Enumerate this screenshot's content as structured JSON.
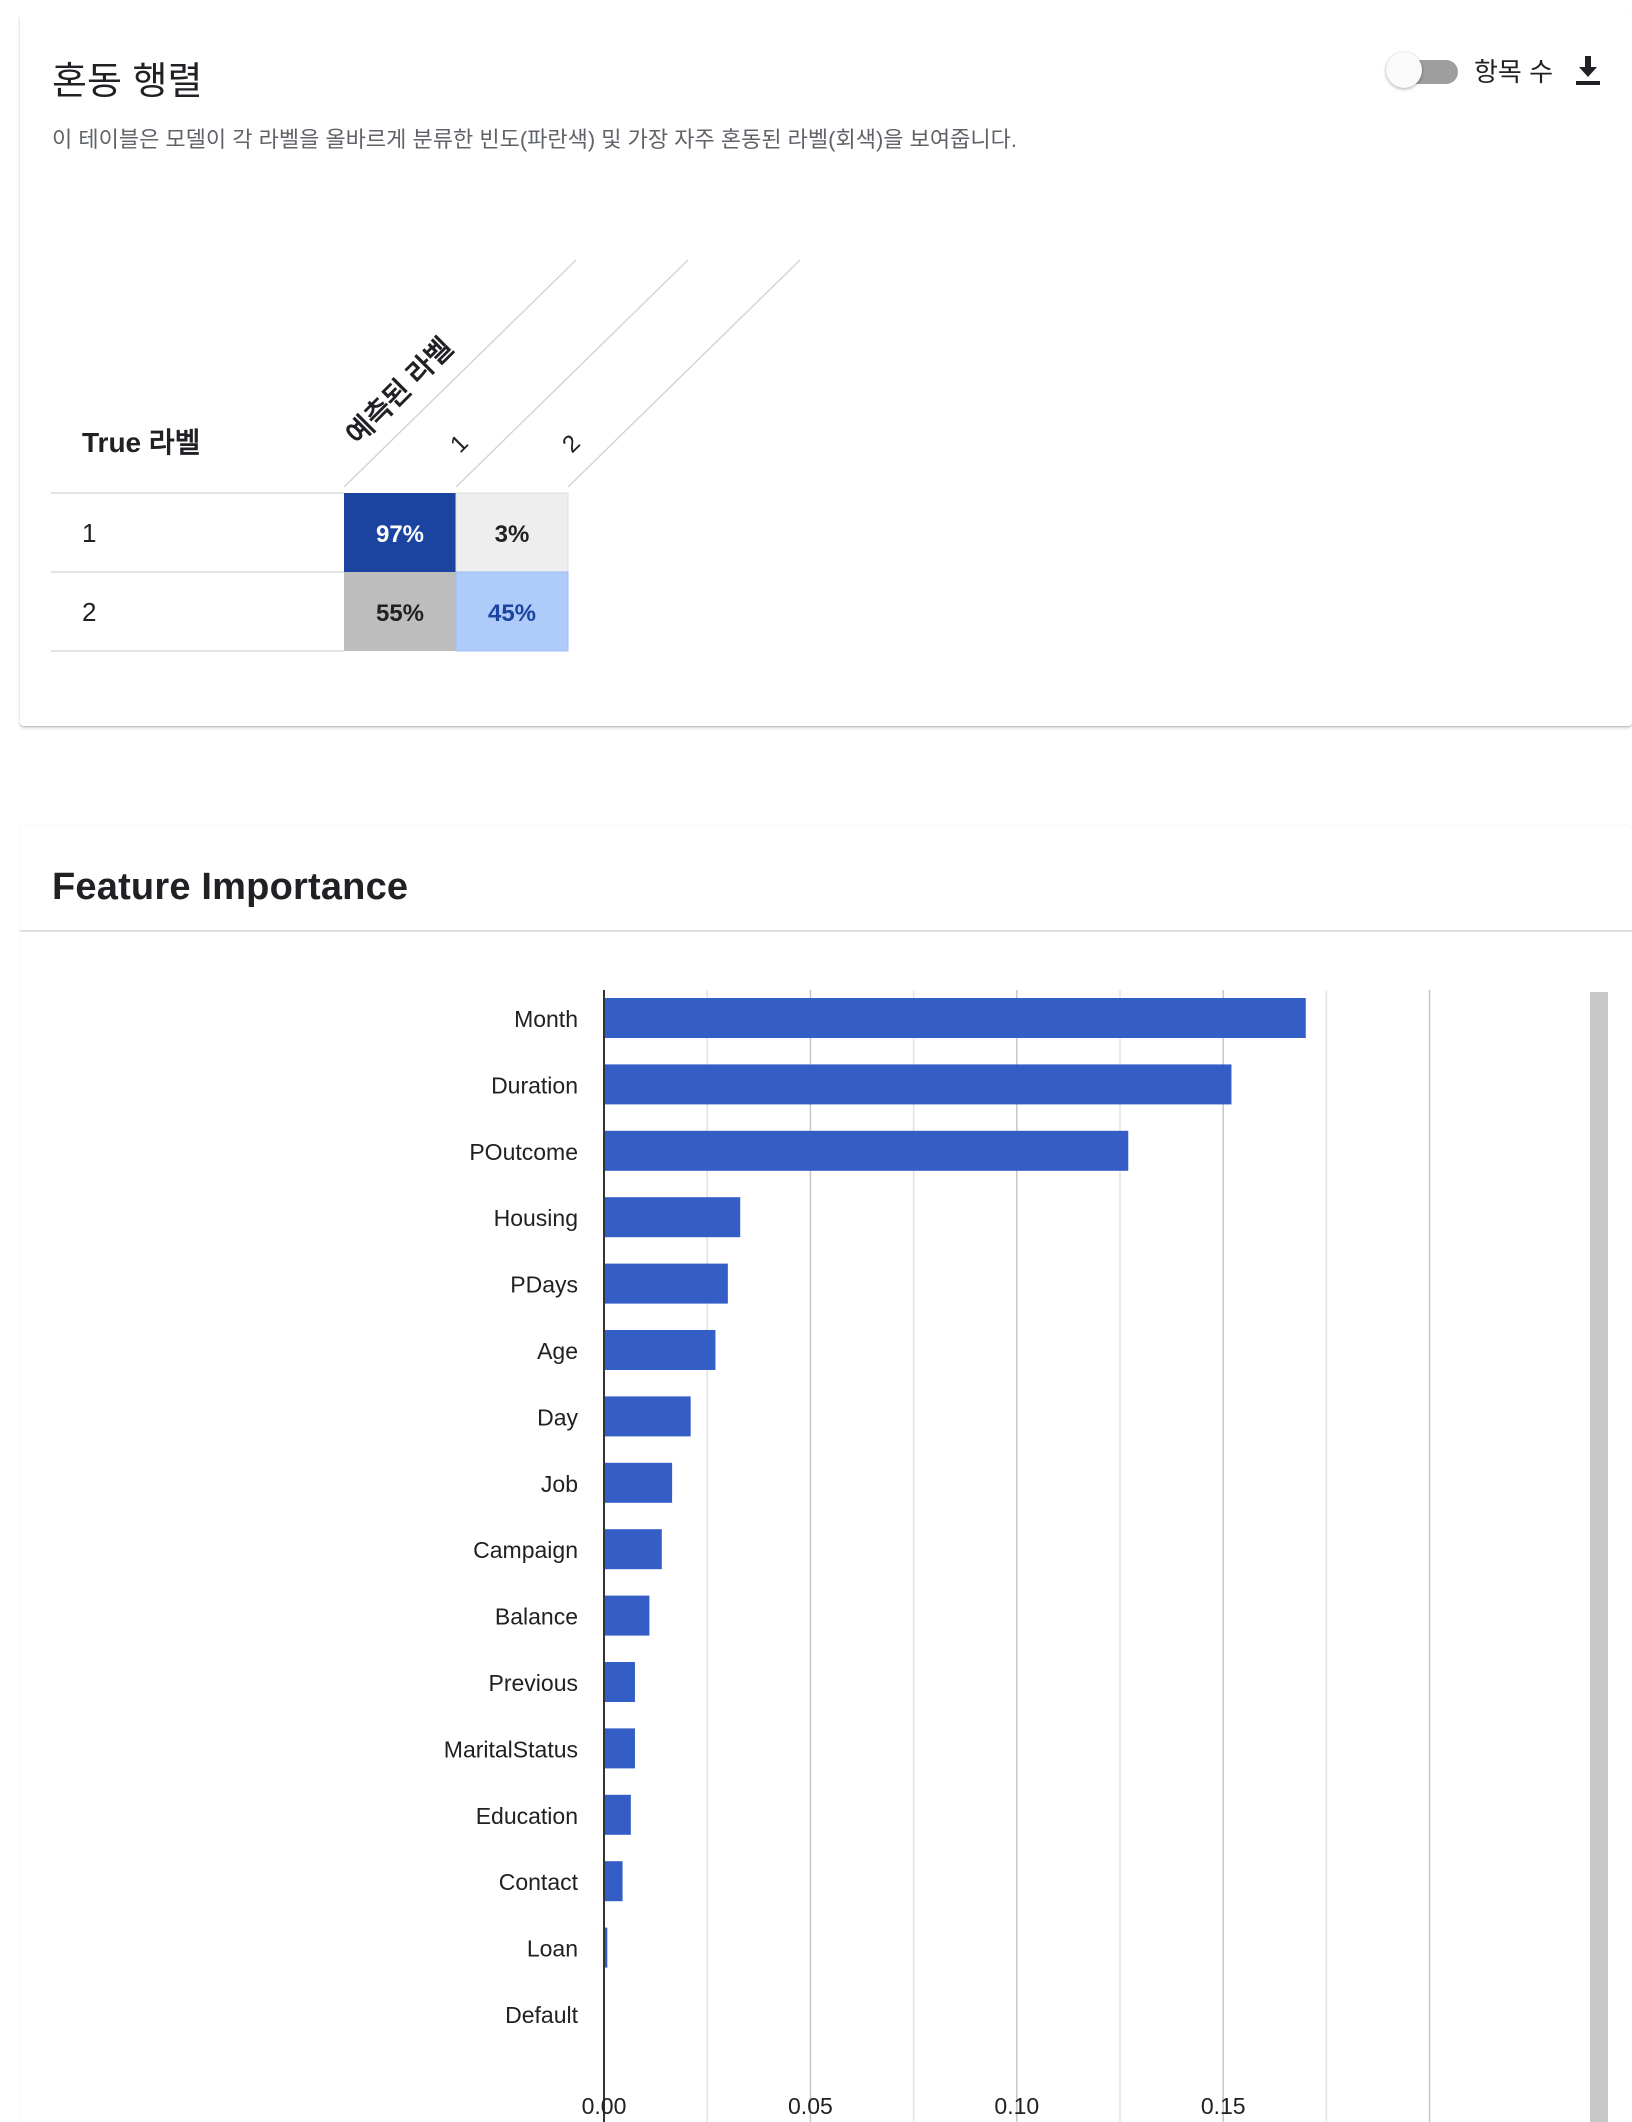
{
  "confusion_matrix": {
    "title": "혼동 행렬",
    "description": "이 테이블은 모델이 각 라벨을 올바르게 분류한 빈도(파란색) 및 가장 자주 혼동된 라벨(회색)을 보여줍니다.",
    "toggle_label": "항목 수",
    "toggle_on": false,
    "true_label_header": "True 라벨",
    "predicted_label_header": "예측된 라벨",
    "predicted_labels": [
      "1",
      "2"
    ],
    "rows": [
      {
        "label": "1",
        "cells": [
          "97%",
          "3%"
        ]
      },
      {
        "label": "2",
        "cells": [
          "55%",
          "45%"
        ]
      }
    ],
    "colors": {
      "correct_high": "#1a44a0",
      "correct_low": "#aecbfa",
      "confused_high": "#bdbdbd",
      "confused_low": "#eeeeee"
    }
  },
  "feature_importance": {
    "title": "Feature Importance",
    "bar_color": "#345dc5"
  },
  "chart_data": {
    "type": "bar",
    "orientation": "horizontal",
    "title": "Feature Importance",
    "categories": [
      "Month",
      "Duration",
      "POutcome",
      "Housing",
      "PDays",
      "Age",
      "Day",
      "Job",
      "Campaign",
      "Balance",
      "Previous",
      "MaritalStatus",
      "Education",
      "Contact",
      "Loan",
      "Default"
    ],
    "values": [
      0.17,
      0.152,
      0.127,
      0.033,
      0.03,
      0.027,
      0.021,
      0.0165,
      0.014,
      0.011,
      0.0075,
      0.0075,
      0.0065,
      0.0045,
      0.0008,
      0.0
    ],
    "xlim": [
      0,
      0.2
    ],
    "x_ticks": [
      "0.00",
      "0.05",
      "0.10",
      "0.15"
    ],
    "grid": true
  }
}
